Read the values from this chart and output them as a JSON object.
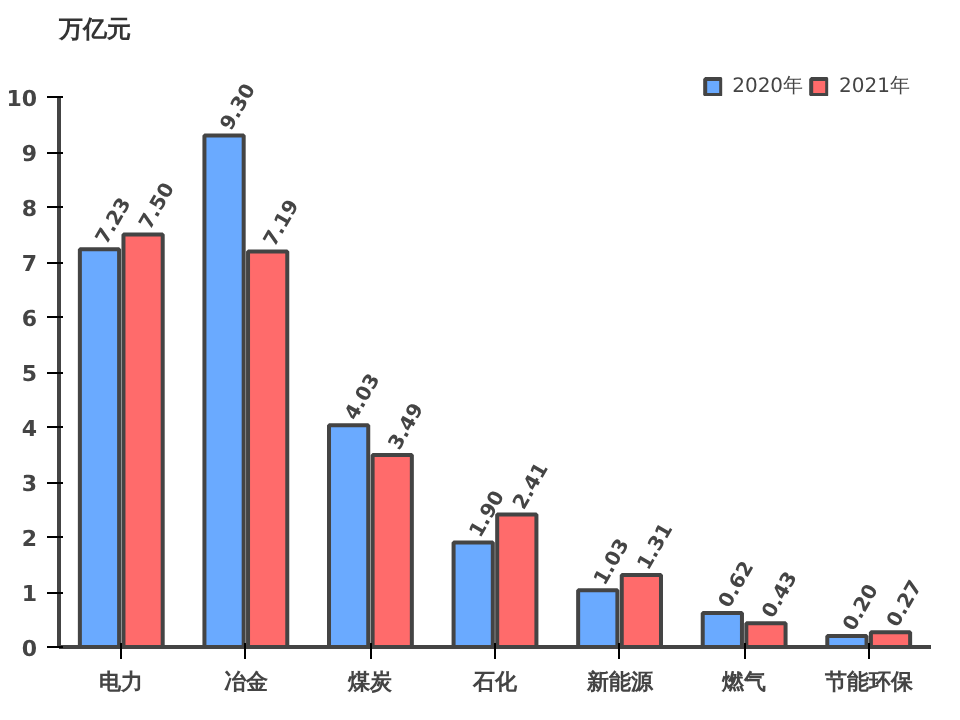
{
  "chart_data": {
    "type": "bar",
    "ylabel": "万亿元",
    "categories": [
      "电力",
      "冶金",
      "煤炭",
      "石化",
      "新能源",
      "燃气",
      "节能环保"
    ],
    "series": [
      {
        "name": "2020年",
        "color": "#6aaaff",
        "values": [
          7.23,
          9.3,
          4.03,
          1.9,
          1.03,
          0.62,
          0.2
        ],
        "value_labels": [
          "7.23",
          "9.30",
          "4.03",
          "1.90",
          "1.03",
          "0.62",
          "0.20"
        ]
      },
      {
        "name": "2021年",
        "color": "#ff6b6b",
        "values": [
          7.5,
          7.19,
          3.49,
          2.41,
          1.31,
          0.43,
          0.27
        ],
        "value_labels": [
          "7.50",
          "7.19",
          "3.49",
          "2.41",
          "1.31",
          "0.43",
          "0.27"
        ]
      }
    ],
    "ylim": [
      0,
      10
    ],
    "yticks": [
      0,
      1,
      2,
      3,
      4,
      5,
      6,
      7,
      8,
      9,
      10
    ],
    "legend": "top right",
    "grid": false
  }
}
